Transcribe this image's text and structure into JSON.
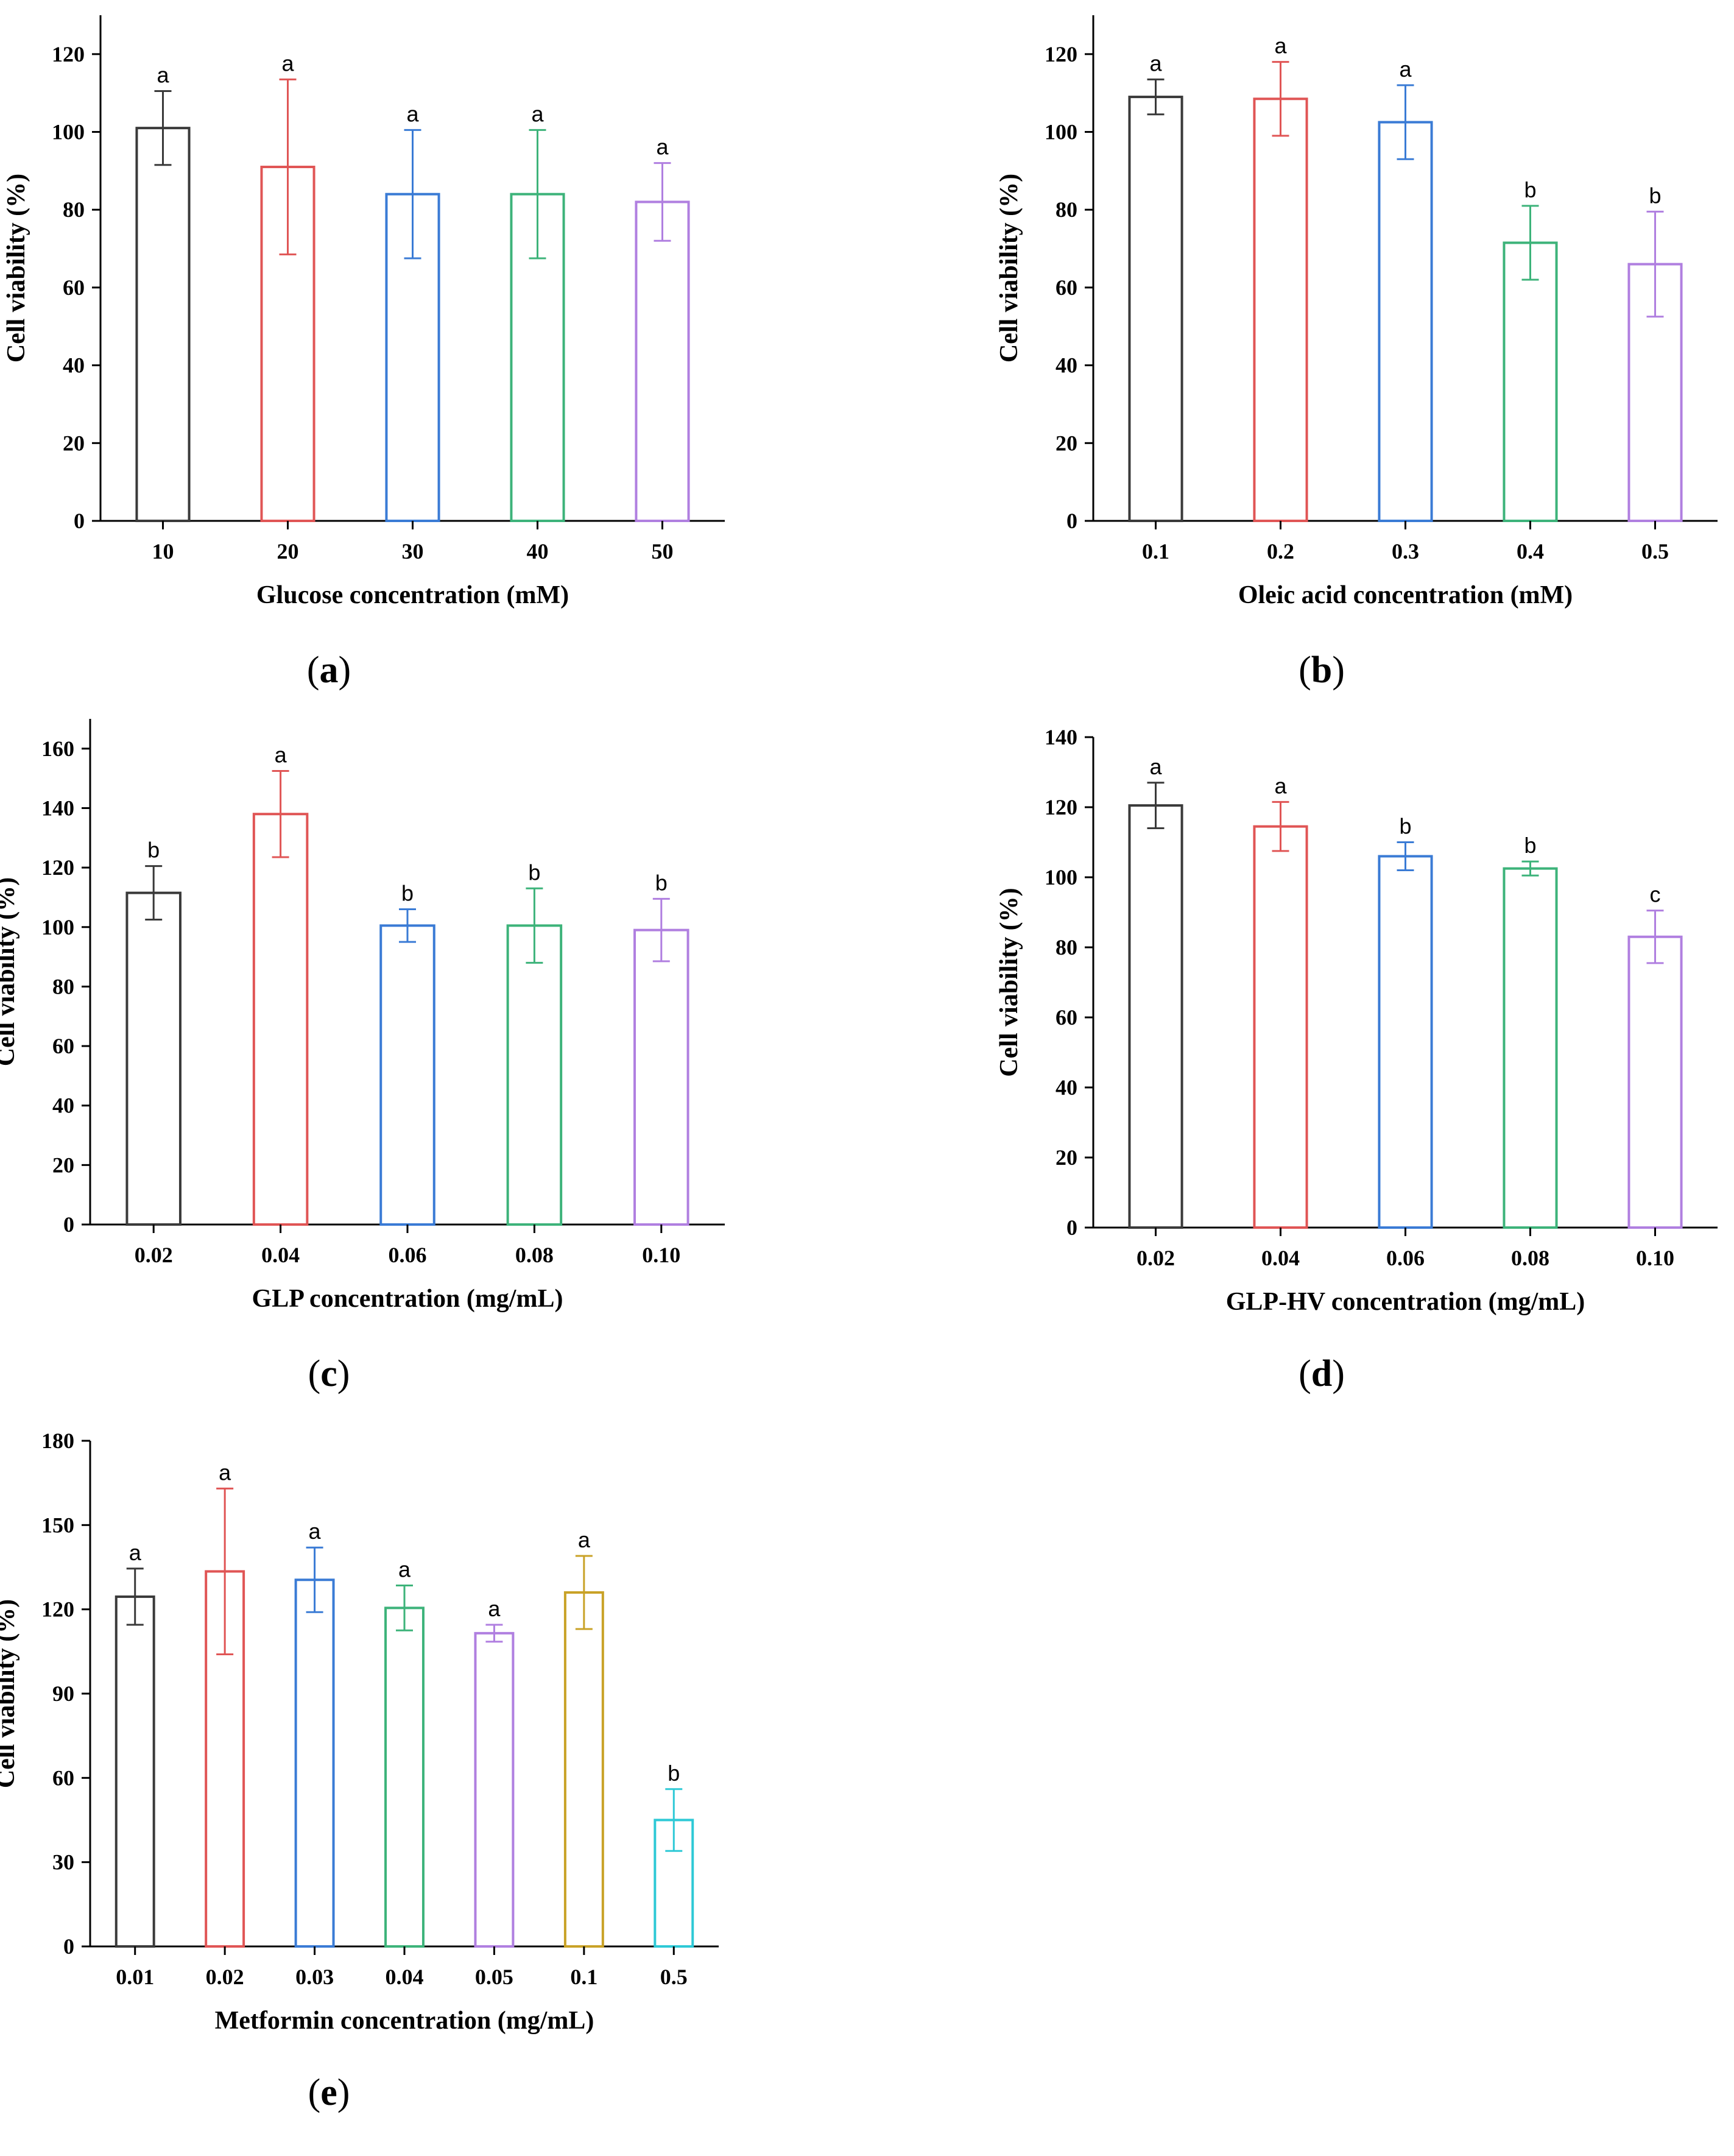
{
  "figure": {
    "label_parens": [
      "(",
      ")"
    ]
  },
  "chart_data": [
    {
      "panel": "a",
      "type": "bar",
      "xlabel": "Glucose concentration (mM)",
      "ylabel": "Cell viability (%)",
      "categories": [
        "10",
        "20",
        "30",
        "40",
        "50"
      ],
      "values": [
        101,
        91,
        84,
        84,
        82
      ],
      "errors": [
        9.5,
        22.5,
        16.5,
        16.5,
        10
      ],
      "significance": [
        "a",
        "a",
        "a",
        "a",
        "a"
      ],
      "colors": [
        "#3a3a3a",
        "#e05555",
        "#3a7bd5",
        "#3db37a",
        "#b07fe0"
      ],
      "ylim": [
        0,
        130
      ],
      "yticks": [
        0,
        20,
        40,
        60,
        80,
        100,
        120
      ],
      "grid": false,
      "legend": false
    },
    {
      "panel": "b",
      "type": "bar",
      "xlabel": "Oleic acid concentration (mM)",
      "ylabel": "Cell viability (%)",
      "categories": [
        "0.1",
        "0.2",
        "0.3",
        "0.4",
        "0.5"
      ],
      "values": [
        109,
        108.5,
        102.5,
        71.5,
        66
      ],
      "errors": [
        4.5,
        9.5,
        9.5,
        9.5,
        13.5
      ],
      "significance": [
        "a",
        "a",
        "a",
        "b",
        "b"
      ],
      "colors": [
        "#3a3a3a",
        "#e05555",
        "#3a7bd5",
        "#3db37a",
        "#b07fe0"
      ],
      "ylim": [
        0,
        130
      ],
      "yticks": [
        0,
        20,
        40,
        60,
        80,
        100,
        120
      ],
      "grid": false,
      "legend": false
    },
    {
      "panel": "c",
      "type": "bar",
      "xlabel": "GLP concentration (mg/mL)",
      "ylabel": "Cell viability (%)",
      "categories": [
        "0.02",
        "0.04",
        "0.06",
        "0.08",
        "0.10"
      ],
      "values": [
        111.5,
        138,
        100.5,
        100.5,
        99
      ],
      "errors": [
        9,
        14.5,
        5.5,
        12.5,
        10.5
      ],
      "significance": [
        "b",
        "a",
        "b",
        "b",
        "b"
      ],
      "colors": [
        "#3a3a3a",
        "#e05555",
        "#3a7bd5",
        "#3db37a",
        "#b07fe0"
      ],
      "ylim": [
        0,
        170
      ],
      "yticks": [
        0,
        20,
        40,
        60,
        80,
        100,
        120,
        140,
        160
      ],
      "grid": false,
      "legend": false
    },
    {
      "panel": "d",
      "type": "bar",
      "xlabel": "GLP-HV concentration (mg/mL)",
      "ylabel": "Cell viability (%)",
      "categories": [
        "0.02",
        "0.04",
        "0.06",
        "0.08",
        "0.10"
      ],
      "values": [
        120.5,
        114.5,
        106,
        102.5,
        83
      ],
      "errors": [
        6.5,
        7,
        4,
        2,
        7.5
      ],
      "significance": [
        "a",
        "a",
        "b",
        "b",
        "c"
      ],
      "colors": [
        "#3a3a3a",
        "#e05555",
        "#3a7bd5",
        "#3db37a",
        "#b07fe0"
      ],
      "ylim": [
        0,
        140
      ],
      "yticks": [
        0,
        20,
        40,
        60,
        80,
        100,
        120,
        140
      ],
      "grid": false,
      "legend": false
    },
    {
      "panel": "e",
      "type": "bar",
      "xlabel": "Metformin concentration (mg/mL)",
      "ylabel": "Cell viability (%)",
      "categories": [
        "0.01",
        "0.02",
        "0.03",
        "0.04",
        "0.05",
        "0.1",
        "0.5"
      ],
      "values": [
        124.5,
        133.5,
        130.5,
        120.5,
        111.5,
        126,
        45
      ],
      "errors": [
        10,
        29.5,
        11.5,
        8,
        3,
        13,
        11
      ],
      "significance": [
        "a",
        "a",
        "a",
        "a",
        "a",
        "a",
        "b"
      ],
      "colors": [
        "#3a3a3a",
        "#e05555",
        "#3a7bd5",
        "#3db37a",
        "#b07fe0",
        "#c9a227",
        "#2ec9d6"
      ],
      "ylim": [
        0,
        180
      ],
      "yticks": [
        0,
        30,
        60,
        90,
        120,
        150,
        180
      ],
      "grid": false,
      "legend": false
    }
  ]
}
